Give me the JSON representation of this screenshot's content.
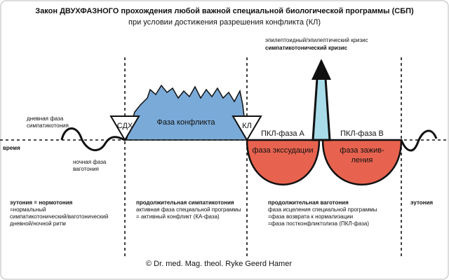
{
  "header": {
    "title": "Закон ДВУХФАЗНОГО прохождения любой важной специальной биологической программы (СБП)",
    "subtitle": "при условии достижения разрешения конфликта (КЛ)"
  },
  "crisis": [
    "эпилептоидный/эпилептический кризис",
    "симпатикотонический кризис"
  ],
  "day_phase": [
    "дневная фаза",
    "симпатикотония"
  ],
  "time": "время",
  "night_phase": [
    "ночная фаза",
    "ваготония"
  ],
  "markers": {
    "sdh": "СДХ",
    "conflict": "Фаза конфликта",
    "kl": "КЛ"
  },
  "pcl_a": "ПКЛ-фаза А",
  "pcl_b": "ПКЛ-фаза В",
  "exudation": "фаза экссудации",
  "healing": [
    "фаза зажив-",
    "ления"
  ],
  "notes": {
    "eutonia": [
      "эутония = нормотония",
      "=нормальный",
      "симпатикотонический/ваготонический",
      "дневной/ночной ритм"
    ],
    "sympathicotonia": [
      "продолжительная симпатикотония",
      "активная фаза специальной программы",
      "= активный конфликт (КА-фаза)"
    ],
    "vagotonia": [
      "продолжительная ваготония",
      "фаза исцеления специальной программы",
      "=фаза возврата к нормализации",
      "=фаза постконфликтолиза (ПКЛ-фаза)"
    ],
    "eutonia_end": "эутония"
  },
  "copyright": "© Dr. med. Mag. theol. Ryke Geerd Hamer"
}
